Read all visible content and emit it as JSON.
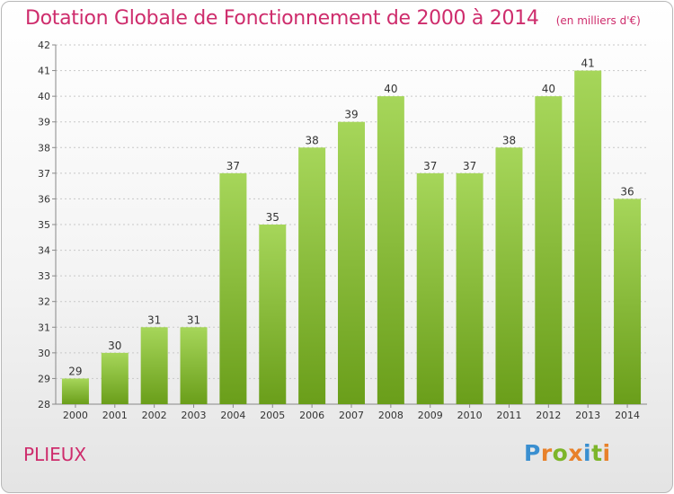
{
  "header": {
    "title": "Dotation Globale de Fonctionnement de 2000 à 2014",
    "subtitle": "(en milliers d'€)"
  },
  "footer": {
    "commune": "PLIEUX",
    "logo_text": [
      "P",
      "r",
      "o",
      "x",
      "i",
      "t",
      "i"
    ]
  },
  "colors": {
    "title": "#ce2c6c",
    "bar_light": "#a6d65a",
    "bar_dark": "#6a9e1a",
    "grid": "#c8c8c8"
  },
  "chart_data": {
    "type": "bar",
    "title": "Dotation Globale de Fonctionnement de 2000 à 2014",
    "subtitle": "(en milliers d'€)",
    "categories": [
      "2000",
      "2001",
      "2002",
      "2003",
      "2004",
      "2005",
      "2006",
      "2007",
      "2008",
      "2009",
      "2010",
      "2011",
      "2012",
      "2013",
      "2014"
    ],
    "values": [
      29,
      30,
      31,
      31,
      37,
      35,
      38,
      39,
      40,
      37,
      37,
      38,
      40,
      41,
      36
    ],
    "xlabel": "",
    "ylabel": "",
    "ylim": [
      28,
      42
    ],
    "yticks": [
      "28",
      "29",
      "30",
      "31",
      "32",
      "33",
      "34",
      "35",
      "36",
      "37",
      "38",
      "39",
      "40",
      "41",
      "42"
    ],
    "grid": true,
    "legend": "none"
  }
}
